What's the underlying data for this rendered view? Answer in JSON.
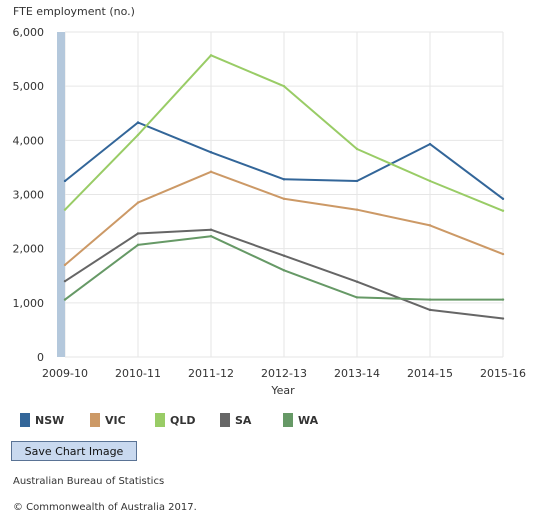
{
  "chart_data": {
    "type": "line",
    "title": "",
    "ylabel": "FTE employment (no.)",
    "xlabel": "Year",
    "categories": [
      "2009-10",
      "2010-11",
      "2011-12",
      "2012-13",
      "2013-14",
      "2014-15",
      "2015-16"
    ],
    "ylim": [
      0,
      6000
    ],
    "yticks": [
      0,
      1000,
      2000,
      3000,
      4000,
      5000,
      6000
    ],
    "ytick_labels": [
      "0",
      "1,000",
      "2,000",
      "3,000",
      "4,000",
      "5,000",
      "6,000"
    ],
    "grid": true,
    "legend_position": "bottom",
    "series": [
      {
        "name": "NSW",
        "color": "#336699",
        "values": [
          3250,
          4330,
          3780,
          3280,
          3250,
          3930,
          2920
        ]
      },
      {
        "name": "VIC",
        "color": "#cc9966",
        "values": [
          1700,
          2850,
          3420,
          2920,
          2720,
          2430,
          1900
        ]
      },
      {
        "name": "QLD",
        "color": "#99cc66",
        "values": [
          2720,
          4100,
          5570,
          5000,
          3840,
          3250,
          2700
        ]
      },
      {
        "name": "SA",
        "color": "#666666",
        "values": [
          1400,
          2280,
          2350,
          1870,
          1390,
          870,
          710
        ]
      },
      {
        "name": "WA",
        "color": "#669966",
        "values": [
          1060,
          2070,
          2230,
          1600,
          1100,
          1060,
          1060
        ]
      }
    ]
  },
  "ui": {
    "save_button_label": "Save Chart Image",
    "source": "Australian Bureau of Statistics",
    "copyright": "© Commonwealth of Australia 2017."
  }
}
